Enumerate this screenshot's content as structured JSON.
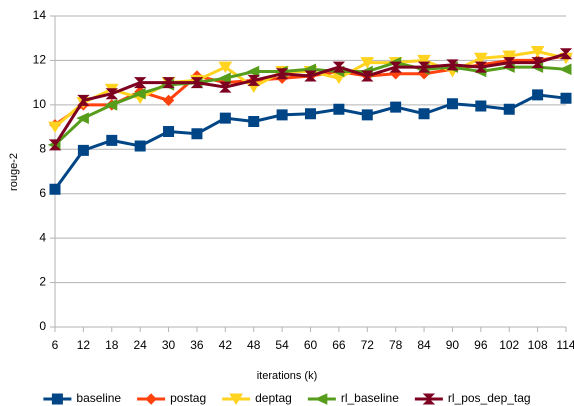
{
  "chart_data": {
    "type": "line",
    "x": [
      6,
      12,
      18,
      24,
      30,
      36,
      42,
      48,
      54,
      60,
      66,
      72,
      78,
      84,
      90,
      96,
      102,
      108,
      114
    ],
    "xlim": [
      6,
      114
    ],
    "xticks": [
      6,
      12,
      18,
      24,
      30,
      36,
      42,
      48,
      54,
      60,
      66,
      72,
      78,
      84,
      90,
      96,
      102,
      108,
      114
    ],
    "ylim": [
      0,
      14
    ],
    "yticks": [
      0,
      2,
      4,
      6,
      8,
      10,
      12,
      14
    ],
    "grid": true,
    "xlabel": "iterations (k)",
    "ylabel": "rouge-2",
    "legend": "bottom",
    "series": [
      {
        "name": "baseline",
        "color": "#004586",
        "marker": "square",
        "values": [
          6.2,
          7.95,
          8.4,
          8.15,
          8.8,
          8.7,
          9.4,
          9.25,
          9.55,
          9.6,
          9.8,
          9.55,
          9.9,
          9.6,
          10.05,
          9.95,
          9.8,
          10.45,
          10.3
        ]
      },
      {
        "name": "postag",
        "color": "#ff420e",
        "marker": "diamond",
        "values": [
          9.1,
          10.0,
          10.0,
          10.6,
          10.2,
          11.3,
          11.0,
          11.1,
          11.2,
          11.3,
          11.5,
          11.3,
          11.4,
          11.4,
          11.6,
          11.8,
          12.0,
          12.0,
          12.2
        ]
      },
      {
        "name": "deptag",
        "color": "#ffd320",
        "marker": "triangle",
        "values": [
          9.0,
          10.1,
          10.7,
          10.3,
          11.0,
          11.1,
          11.7,
          10.8,
          11.5,
          11.5,
          11.2,
          11.9,
          11.9,
          12.0,
          11.5,
          12.1,
          12.2,
          12.4,
          12.1
        ]
      },
      {
        "name": "rl_baseline",
        "color": "#579d1c",
        "marker": "triangle-left",
        "values": [
          8.2,
          9.4,
          10.0,
          10.5,
          10.9,
          11.0,
          11.2,
          11.5,
          11.5,
          11.6,
          11.5,
          11.5,
          11.9,
          11.6,
          11.7,
          11.5,
          11.7,
          11.7,
          11.6
        ]
      },
      {
        "name": "rl_pos_dep_tag",
        "color": "#7e0021",
        "marker": "bowtie",
        "values": [
          8.2,
          10.2,
          10.5,
          11.0,
          11.0,
          11.0,
          10.8,
          11.1,
          11.4,
          11.3,
          11.7,
          11.3,
          11.7,
          11.7,
          11.8,
          11.7,
          11.9,
          11.9,
          12.3
        ]
      }
    ]
  }
}
